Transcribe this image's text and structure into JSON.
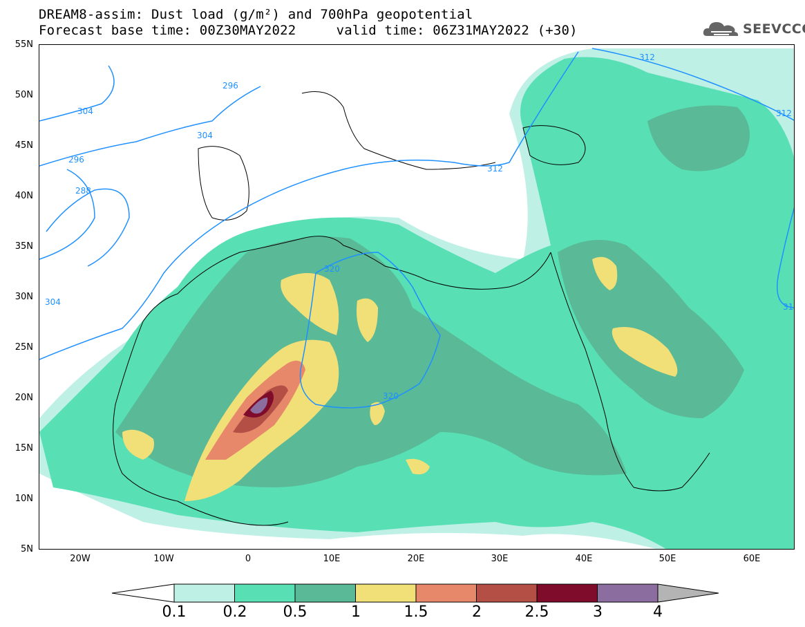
{
  "title": {
    "line1": "DREAM8-assim: Dust load (g/m²) and 700hPa geopotential",
    "line2": "Forecast base time: 00Z30MAY2022     valid time: 06Z31MAY2022 (+30)"
  },
  "logo": {
    "text": "SEEVCCC",
    "icon": "cloud-icon"
  },
  "axes": {
    "lat_labels": [
      "55N",
      "50N",
      "45N",
      "40N",
      "35N",
      "30N",
      "25N",
      "20N",
      "15N",
      "10N",
      "5N"
    ],
    "lon_labels": [
      "20W",
      "10W",
      "0",
      "10E",
      "20E",
      "30E",
      "40E",
      "50E",
      "60E"
    ]
  },
  "contours": {
    "color": "#1e90ff",
    "labels": [
      "296",
      "304",
      "304",
      "296",
      "288",
      "304",
      "312",
      "312",
      "312",
      "320",
      "320",
      "31"
    ]
  },
  "colorbar": {
    "ticks": [
      "0.1",
      "0.2",
      "0.5",
      "1",
      "1.5",
      "2",
      "2.5",
      "3",
      "4"
    ],
    "colors": [
      "#bff0e6",
      "#58dfb4",
      "#5ab996",
      "#f1df78",
      "#e8886b",
      "#b34f45",
      "#7e0c2a",
      "#8c6d9f"
    ],
    "under_color": "#ffffff",
    "over_color": "#b4b4b4"
  }
}
